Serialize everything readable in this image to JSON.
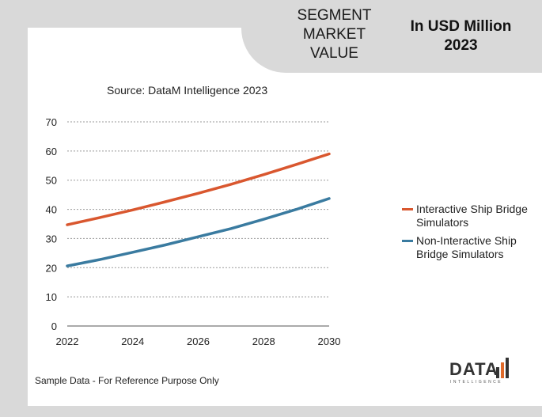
{
  "header": {
    "segment_title": "SEGMENT MARKET VALUE",
    "unit_title": "In USD Million 2023"
  },
  "source": "Source: DataM Intelligence  2023",
  "footer": "Sample Data - For Reference Purpose Only",
  "logo": {
    "word": "DATA",
    "sub": "INTELLIGENCE"
  },
  "colors": {
    "series1": "#d9572f",
    "series2": "#3a7ba0",
    "grid": "#999999"
  },
  "chart_data": {
    "type": "line",
    "title": "",
    "xlabel": "",
    "ylabel": "",
    "x": [
      2022,
      2023,
      2024,
      2025,
      2026,
      2027,
      2028,
      2029,
      2030
    ],
    "xticks": [
      2022,
      2024,
      2026,
      2028,
      2030
    ],
    "yticks": [
      0,
      10,
      20,
      30,
      40,
      50,
      60,
      70
    ],
    "xlim": [
      2022,
      2030
    ],
    "ylim": [
      0,
      70
    ],
    "grid": true,
    "legend_position": "right",
    "series": [
      {
        "name": "Interactive Ship Bridge Simulators",
        "values": [
          34.7,
          37.2,
          39.8,
          42.6,
          45.5,
          48.6,
          51.9,
          55.4,
          59.0
        ]
      },
      {
        "name": "Non-Interactive Ship Bridge Simulators",
        "values": [
          20.6,
          22.8,
          25.3,
          27.8,
          30.6,
          33.4,
          36.6,
          40.0,
          43.7
        ]
      }
    ]
  }
}
